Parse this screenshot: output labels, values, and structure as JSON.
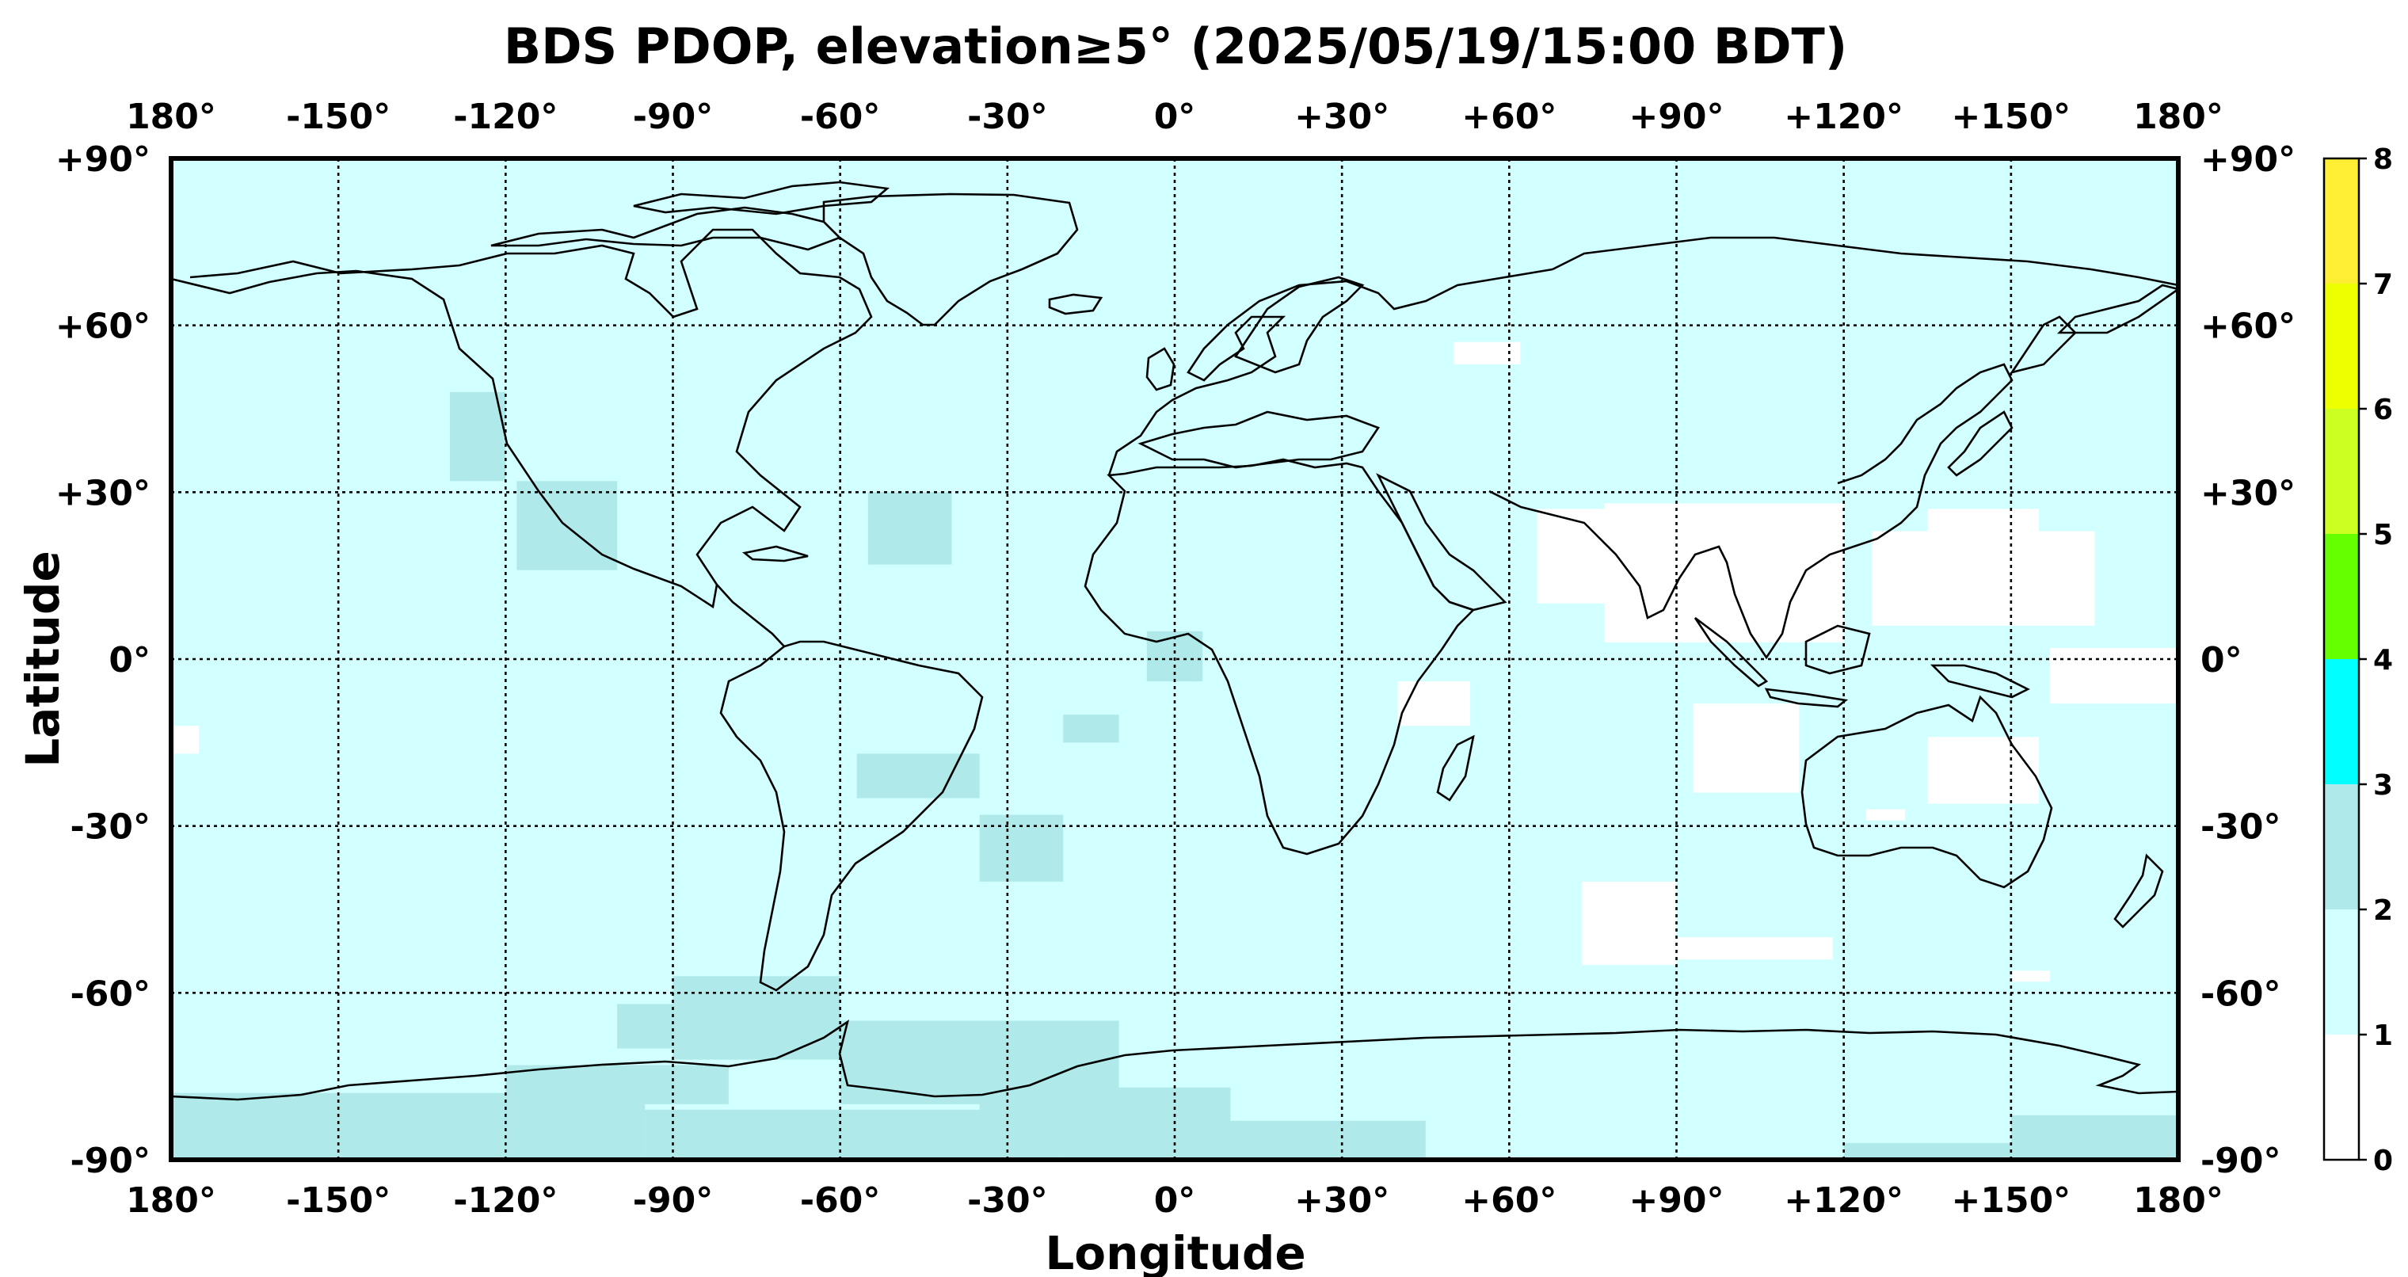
{
  "chart_data": {
    "type": "heatmap",
    "title": "BDS PDOP, elevation≥5° (2025/05/19/15:00 BDT)",
    "xlabel": "Longitude",
    "ylabel": "Latitude",
    "xlim": [
      -180,
      180
    ],
    "ylim": [
      -90,
      90
    ],
    "grid": true,
    "grid_style": "dotted",
    "x_tick_labels": [
      "180°",
      "-150°",
      "-120°",
      "-90°",
      "-60°",
      "-30°",
      "0°",
      "+30°",
      "+60°",
      "+90°",
      "+120°",
      "+150°",
      "180°"
    ],
    "y_tick_labels": [
      "+90°",
      "+60°",
      "+30°",
      "0°",
      "-30°",
      "-60°",
      "-90°"
    ],
    "background_value_range": [
      1,
      2
    ],
    "colorbar": {
      "placement": "right",
      "ticks": [
        "0",
        "1",
        "2",
        "3",
        "4",
        "5",
        "6",
        "7",
        "8"
      ],
      "bins": [
        {
          "from": 0,
          "to": 1,
          "color": "#ffffff"
        },
        {
          "from": 1,
          "to": 2,
          "color": "#d2ffff"
        },
        {
          "from": 2,
          "to": 3,
          "color": "#afe9e9"
        },
        {
          "from": 3,
          "to": 4,
          "color": "#00ffff"
        },
        {
          "from": 4,
          "to": 5,
          "color": "#66ff00"
        },
        {
          "from": 5,
          "to": 6,
          "color": "#ccff22"
        },
        {
          "from": 6,
          "to": 7,
          "color": "#eeff00"
        },
        {
          "from": 7,
          "to": 8,
          "color": "#ffee33"
        }
      ]
    },
    "regions": [
      {
        "value": 0.8,
        "lon": [
          50,
          62
        ],
        "lat": [
          53,
          57
        ]
      },
      {
        "value": 0.8,
        "lon": [
          65,
          98
        ],
        "lat": [
          10,
          27
        ]
      },
      {
        "value": 0.8,
        "lon": [
          77,
          120
        ],
        "lat": [
          3,
          28
        ]
      },
      {
        "value": 0.8,
        "lon": [
          98,
          118
        ],
        "lat": [
          8,
          20
        ]
      },
      {
        "value": 0.8,
        "lon": [
          125,
          165
        ],
        "lat": [
          6,
          23
        ]
      },
      {
        "value": 0.8,
        "lon": [
          135,
          155
        ],
        "lat": [
          18,
          27
        ]
      },
      {
        "value": 0.8,
        "lon": [
          157,
          180
        ],
        "lat": [
          -8,
          2
        ]
      },
      {
        "value": 0.8,
        "lon": [
          93,
          112
        ],
        "lat": [
          -24,
          -8
        ]
      },
      {
        "value": 0.8,
        "lon": [
          135,
          155
        ],
        "lat": [
          -26,
          -14
        ]
      },
      {
        "value": 0.8,
        "lon": [
          40,
          53
        ],
        "lat": [
          -12,
          -4
        ]
      },
      {
        "value": 0.8,
        "lon": [
          -180,
          -175
        ],
        "lat": [
          -17,
          -12
        ]
      },
      {
        "value": 0.8,
        "lon": [
          73,
          90
        ],
        "lat": [
          -55,
          -40
        ]
      },
      {
        "value": 0.8,
        "lon": [
          90,
          118
        ],
        "lat": [
          -54,
          -50
        ]
      },
      {
        "value": 0.8,
        "lon": [
          150,
          157
        ],
        "lat": [
          -58,
          -56
        ]
      },
      {
        "value": 0.8,
        "lon": [
          124,
          131
        ],
        "lat": [
          -29,
          -27
        ]
      },
      {
        "value": 2.3,
        "lon": [
          -130,
          -120
        ],
        "lat": [
          32,
          48
        ]
      },
      {
        "value": 2.3,
        "lon": [
          -118,
          -100
        ],
        "lat": [
          16,
          32
        ]
      },
      {
        "value": 2.3,
        "lon": [
          -55,
          -40
        ],
        "lat": [
          17,
          30
        ]
      },
      {
        "value": 2.3,
        "lon": [
          -5,
          5
        ],
        "lat": [
          -4,
          5
        ]
      },
      {
        "value": 2.3,
        "lon": [
          -20,
          -10
        ],
        "lat": [
          -15,
          -10
        ]
      },
      {
        "value": 2.3,
        "lon": [
          -57,
          -35
        ],
        "lat": [
          -25,
          -17
        ]
      },
      {
        "value": 2.3,
        "lon": [
          -35,
          -20
        ],
        "lat": [
          -40,
          -28
        ]
      },
      {
        "value": 2.3,
        "lon": [
          -100,
          -90
        ],
        "lat": [
          -70,
          -62
        ]
      },
      {
        "value": 2.3,
        "lon": [
          -90,
          -60
        ],
        "lat": [
          -72,
          -57
        ]
      },
      {
        "value": 2.3,
        "lon": [
          -60,
          -10
        ],
        "lat": [
          -80,
          -65
        ]
      },
      {
        "value": 2.3,
        "lon": [
          -180,
          -95
        ],
        "lat": [
          -90,
          -78
        ]
      },
      {
        "value": 2.3,
        "lon": [
          -95,
          -20
        ],
        "lat": [
          -90,
          -81
        ]
      },
      {
        "value": 2.3,
        "lon": [
          -20,
          45
        ],
        "lat": [
          -90,
          -83
        ]
      },
      {
        "value": 2.3,
        "lon": [
          150,
          180
        ],
        "lat": [
          -90,
          -82
        ]
      },
      {
        "value": 2.3,
        "lon": [
          120,
          150
        ],
        "lat": [
          -90,
          -87
        ]
      },
      {
        "value": 2.3,
        "lon": [
          -35,
          10
        ],
        "lat": [
          -88,
          -77
        ]
      },
      {
        "value": 2.3,
        "lon": [
          -120,
          -80
        ],
        "lat": [
          -80,
          -73
        ]
      }
    ]
  }
}
